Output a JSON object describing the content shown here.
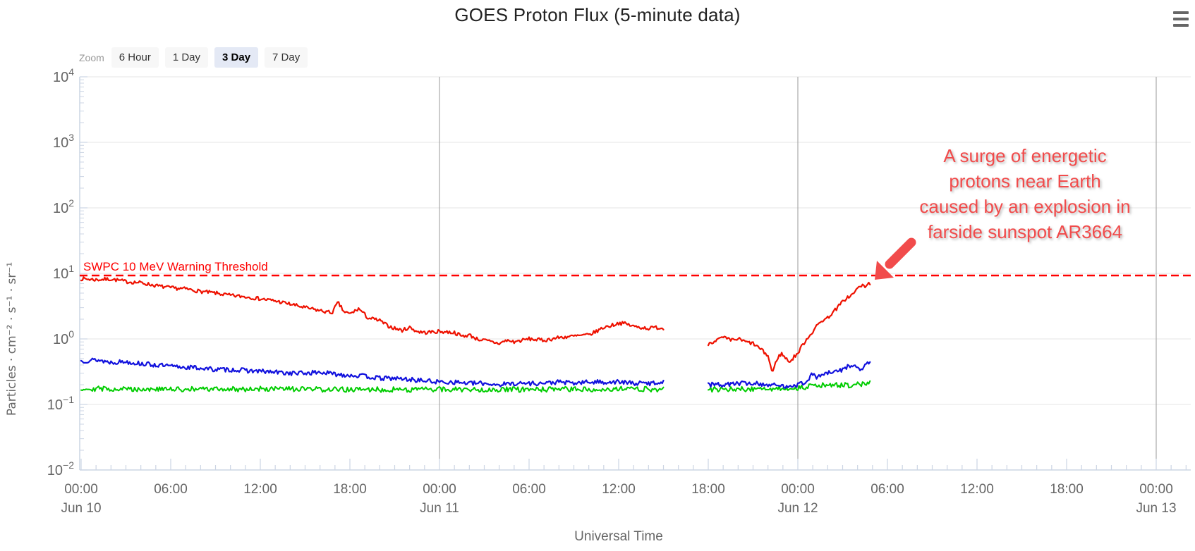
{
  "header": {
    "title": "GOES Proton Flux (5-minute data)",
    "menu_icon": "hamburger-menu-icon"
  },
  "toolbar": {
    "zoom_label": "Zoom",
    "buttons": [
      {
        "label": "6 Hour",
        "selected": false
      },
      {
        "label": "1 Day",
        "selected": false
      },
      {
        "label": "3 Day",
        "selected": true
      },
      {
        "label": "7 Day",
        "selected": false
      }
    ]
  },
  "chart_data": {
    "type": "line",
    "title": "GOES Proton Flux (5-minute data)",
    "xlabel": "Universal Time",
    "ylabel": "Particles · cm⁻² · s⁻¹ · sr⁻¹",
    "x_axis": {
      "unit": "hours since Jun 10 00:00 UT",
      "range_hours": [
        0,
        74.3
      ],
      "major_tick_hours": 6,
      "minor_tick_hours": 1,
      "ticks": [
        {
          "hour": 0,
          "time": "00:00",
          "day": "Jun 10"
        },
        {
          "hour": 6,
          "time": "06:00"
        },
        {
          "hour": 12,
          "time": "12:00"
        },
        {
          "hour": 18,
          "time": "18:00"
        },
        {
          "hour": 24,
          "time": "00:00",
          "day": "Jun 11"
        },
        {
          "hour": 30,
          "time": "06:00"
        },
        {
          "hour": 36,
          "time": "12:00"
        },
        {
          "hour": 42,
          "time": "18:00"
        },
        {
          "hour": 48,
          "time": "00:00",
          "day": "Jun 12"
        },
        {
          "hour": 54,
          "time": "06:00"
        },
        {
          "hour": 60,
          "time": "12:00"
        },
        {
          "hour": 66,
          "time": "18:00"
        },
        {
          "hour": 72,
          "time": "00:00",
          "day": "Jun 13"
        }
      ],
      "day_gridline_hours": [
        24,
        48,
        72
      ]
    },
    "y_axis": {
      "scale": "log10",
      "tick_exponents": [
        4,
        3,
        2,
        1,
        0,
        -1,
        -2
      ],
      "range_exponents": [
        -2,
        4
      ],
      "grid": true
    },
    "threshold": {
      "value": 10,
      "label": "SWPC 10 MeV Warning Threshold"
    },
    "annotation": {
      "lines": [
        "A surge of energetic",
        "protons near Earth",
        "caused by an explosion in",
        "farside sunspot AR3664"
      ],
      "arrow": "points down-left at threshold line where red curve approaches it"
    },
    "data_gap_hours": [
      39,
      42
    ],
    "data_end_hour": 52.8,
    "series": [
      {
        "name": "green-series",
        "color": "#00cc00",
        "width": 2,
        "noise_log": 0.04,
        "seed": 29,
        "points": [
          [
            0,
            0.175
          ],
          [
            6,
            0.17
          ],
          [
            12,
            0.172
          ],
          [
            18,
            0.168
          ],
          [
            24,
            0.17
          ],
          [
            30,
            0.168
          ],
          [
            36,
            0.172
          ],
          [
            39,
            0.17
          ],
          [
            42,
            0.17
          ],
          [
            45,
            0.172
          ],
          [
            47,
            0.175
          ],
          [
            48,
            0.18
          ],
          [
            49,
            0.19
          ],
          [
            50,
            0.2
          ],
          [
            51,
            0.195
          ],
          [
            52,
            0.2
          ],
          [
            52.8,
            0.21
          ]
        ]
      },
      {
        "name": "blue-series",
        "color": "#1111dd",
        "width": 2.2,
        "noise_log": 0.035,
        "seed": 13,
        "points": [
          [
            0,
            0.46
          ],
          [
            1,
            0.48
          ],
          [
            2,
            0.44
          ],
          [
            3,
            0.45
          ],
          [
            4,
            0.42
          ],
          [
            5,
            0.4
          ],
          [
            6,
            0.38
          ],
          [
            7,
            0.37
          ],
          [
            8,
            0.36
          ],
          [
            9,
            0.34
          ],
          [
            10,
            0.34
          ],
          [
            11,
            0.33
          ],
          [
            12,
            0.32
          ],
          [
            13,
            0.31
          ],
          [
            14,
            0.3
          ],
          [
            15,
            0.3
          ],
          [
            16,
            0.31
          ],
          [
            17,
            0.29
          ],
          [
            18,
            0.28
          ],
          [
            19,
            0.27
          ],
          [
            20,
            0.25
          ],
          [
            21,
            0.25
          ],
          [
            22,
            0.24
          ],
          [
            23,
            0.23
          ],
          [
            24,
            0.22
          ],
          [
            25,
            0.22
          ],
          [
            26,
            0.21
          ],
          [
            27,
            0.21
          ],
          [
            28,
            0.2
          ],
          [
            29,
            0.21
          ],
          [
            30,
            0.21
          ],
          [
            31,
            0.21
          ],
          [
            32,
            0.22
          ],
          [
            33,
            0.21
          ],
          [
            34,
            0.22
          ],
          [
            35,
            0.22
          ],
          [
            36,
            0.22
          ],
          [
            37,
            0.21
          ],
          [
            38,
            0.21
          ],
          [
            39,
            0.22
          ],
          [
            42,
            0.2
          ],
          [
            43,
            0.2
          ],
          [
            44,
            0.21
          ],
          [
            45,
            0.21
          ],
          [
            46,
            0.2
          ],
          [
            47,
            0.19
          ],
          [
            48,
            0.2
          ],
          [
            48.5,
            0.22
          ],
          [
            49,
            0.29
          ],
          [
            49.3,
            0.26
          ],
          [
            49.6,
            0.28
          ],
          [
            50,
            0.3
          ],
          [
            50.5,
            0.31
          ],
          [
            51,
            0.34
          ],
          [
            51.3,
            0.38
          ],
          [
            51.6,
            0.4
          ],
          [
            52,
            0.36
          ],
          [
            52.2,
            0.32
          ],
          [
            52.5,
            0.41
          ],
          [
            52.8,
            0.43
          ]
        ]
      },
      {
        "name": "red-series",
        "color": "#ee1100",
        "width": 2.2,
        "noise_log": 0.028,
        "seed": 7,
        "points": [
          [
            0,
            8.3
          ],
          [
            1,
            8.0
          ],
          [
            2,
            8.2
          ],
          [
            3,
            7.5
          ],
          [
            4,
            7.2
          ],
          [
            5,
            6.5
          ],
          [
            6,
            6.0
          ],
          [
            7,
            5.8
          ],
          [
            8,
            5.3
          ],
          [
            9,
            5.0
          ],
          [
            10,
            4.6
          ],
          [
            11,
            4.4
          ],
          [
            12,
            4.1
          ],
          [
            13,
            3.8
          ],
          [
            14,
            3.4
          ],
          [
            15,
            3.0
          ],
          [
            16,
            2.7
          ],
          [
            16.8,
            2.5
          ],
          [
            17.2,
            3.6
          ],
          [
            17.6,
            2.6
          ],
          [
            18,
            2.4
          ],
          [
            18.6,
            2.9
          ],
          [
            19.2,
            2.1
          ],
          [
            20,
            1.9
          ],
          [
            20.5,
            1.6
          ],
          [
            21,
            1.45
          ],
          [
            21.5,
            1.35
          ],
          [
            22,
            1.5
          ],
          [
            22.5,
            1.3
          ],
          [
            23,
            1.25
          ],
          [
            24,
            1.3
          ],
          [
            25,
            1.25
          ],
          [
            25.5,
            1.1
          ],
          [
            26,
            1.15
          ],
          [
            26.5,
            1.0
          ],
          [
            27,
            0.95
          ],
          [
            27.5,
            0.9
          ],
          [
            28,
            0.85
          ],
          [
            28.5,
            0.95
          ],
          [
            29,
            0.9
          ],
          [
            30,
            1.0
          ],
          [
            31,
            0.95
          ],
          [
            32,
            1.05
          ],
          [
            33,
            1.1
          ],
          [
            34,
            1.15
          ],
          [
            34.5,
            1.3
          ],
          [
            35,
            1.5
          ],
          [
            35.5,
            1.6
          ],
          [
            36,
            1.75
          ],
          [
            36.5,
            1.7
          ],
          [
            37,
            1.55
          ],
          [
            37.5,
            1.5
          ],
          [
            38,
            1.45
          ],
          [
            38.5,
            1.5
          ],
          [
            39,
            1.45
          ],
          [
            42,
            0.85
          ],
          [
            42.5,
            0.95
          ],
          [
            43,
            1.05
          ],
          [
            43.5,
            0.95
          ],
          [
            44,
            1.0
          ],
          [
            44.5,
            0.9
          ],
          [
            45,
            0.85
          ],
          [
            45.5,
            0.7
          ],
          [
            46,
            0.55
          ],
          [
            46.3,
            0.3
          ],
          [
            46.6,
            0.5
          ],
          [
            46.9,
            0.6
          ],
          [
            47.2,
            0.5
          ],
          [
            47.5,
            0.45
          ],
          [
            47.8,
            0.55
          ],
          [
            48,
            0.6
          ],
          [
            48.3,
            0.8
          ],
          [
            48.6,
            1.0
          ],
          [
            49,
            1.3
          ],
          [
            49.3,
            1.6
          ],
          [
            49.6,
            1.9
          ],
          [
            50,
            2.1
          ],
          [
            50.3,
            2.5
          ],
          [
            50.6,
            2.9
          ],
          [
            51,
            3.7
          ],
          [
            51.3,
            4.3
          ],
          [
            51.6,
            4.6
          ],
          [
            51.9,
            5.5
          ],
          [
            52.2,
            6.6
          ],
          [
            52.5,
            6.2
          ],
          [
            52.8,
            7.1
          ]
        ]
      }
    ],
    "palette": {
      "grid": "#e6e6e6",
      "day_grid": "#999999",
      "axis_line": "#ccd5e4",
      "tick": "#ccd5e4",
      "tick_label": "#666666",
      "axis_title": "#666666",
      "chart_title": "#222222",
      "threshold": "#fe0000",
      "annotation": "#f14b4b"
    }
  }
}
